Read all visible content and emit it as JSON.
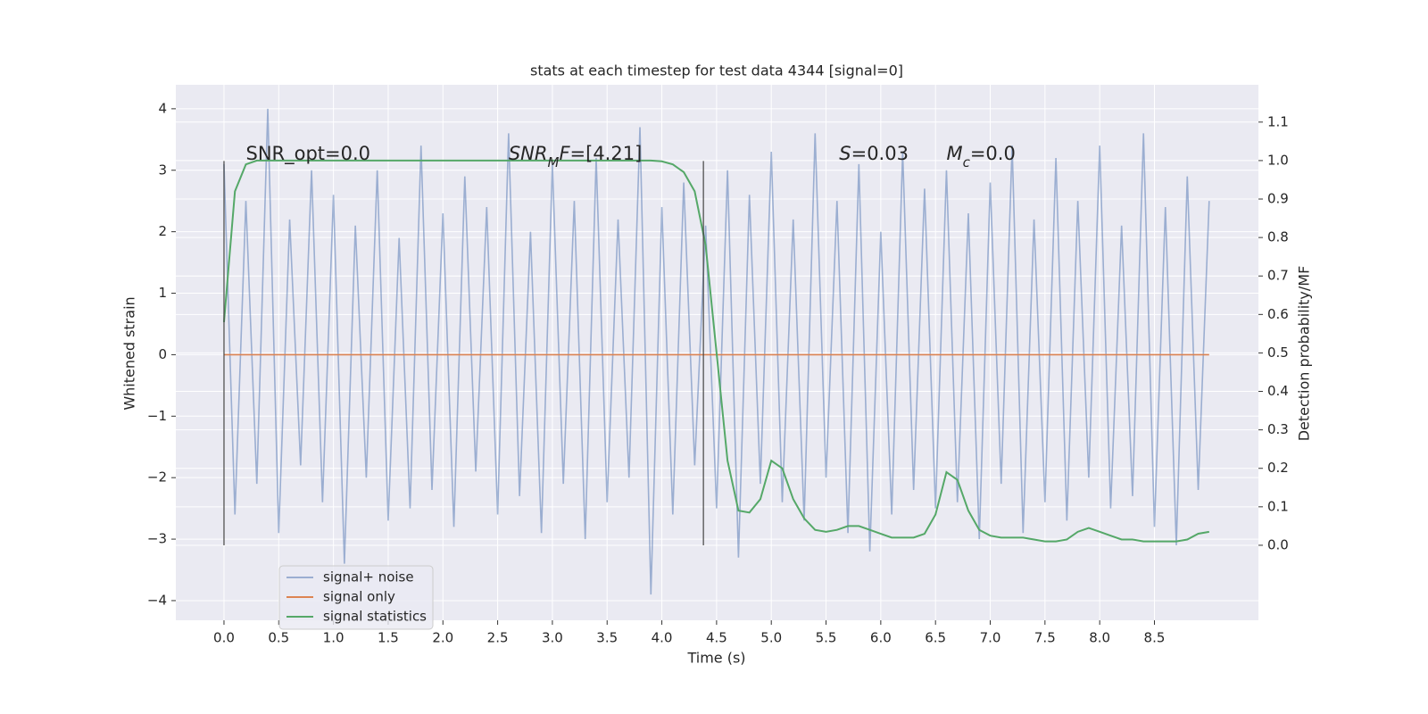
{
  "chart_data": {
    "type": "line",
    "title": "stats at each timestep for test data 4344 [signal=0]",
    "xlabel": "Time (s)",
    "ylabel": "Whitened strain",
    "y2label": "Detection probability/MF",
    "background": "#eaeaf2",
    "grid": true,
    "legend": "lower left",
    "xlim": [
      -0.44,
      9.45
    ],
    "ylim": [
      -4.32,
      4.39
    ],
    "y2lim": [
      -0.195,
      1.197
    ],
    "xticks": [
      {
        "value": 0,
        "label": "0.0"
      },
      {
        "value": 0.5,
        "label": "0.5"
      },
      {
        "value": 1,
        "label": "1.0"
      },
      {
        "value": 1.5,
        "label": "1.5"
      },
      {
        "value": 2,
        "label": "2.0"
      },
      {
        "value": 2.5,
        "label": "2.5"
      },
      {
        "value": 3,
        "label": "3.0"
      },
      {
        "value": 3.5,
        "label": "3.5"
      },
      {
        "value": 4,
        "label": "4.0"
      },
      {
        "value": 4.5,
        "label": "4.5"
      },
      {
        "value": 5,
        "label": "5.0"
      },
      {
        "value": 5.5,
        "label": "5.5"
      },
      {
        "value": 6,
        "label": "6.0"
      },
      {
        "value": 6.5,
        "label": "6.5"
      },
      {
        "value": 7,
        "label": "7.0"
      },
      {
        "value": 7.5,
        "label": "7.5"
      },
      {
        "value": 8,
        "label": "8.0"
      },
      {
        "value": 8.5,
        "label": "8.5"
      }
    ],
    "yticks": [
      {
        "value": -4,
        "label": "−4"
      },
      {
        "value": -3,
        "label": "−3"
      },
      {
        "value": -2,
        "label": "−2"
      },
      {
        "value": -1,
        "label": "−1"
      },
      0,
      1,
      2,
      3,
      4
    ],
    "y2ticks": [
      {
        "value": 0,
        "label": "0.0"
      },
      {
        "value": 0.1,
        "label": "0.1"
      },
      {
        "value": 0.2,
        "label": "0.2"
      },
      {
        "value": 0.3,
        "label": "0.3"
      },
      {
        "value": 0.4,
        "label": "0.4"
      },
      {
        "value": 0.5,
        "label": "0.5"
      },
      {
        "value": 0.6,
        "label": "0.6"
      },
      {
        "value": 0.7,
        "label": "0.7"
      },
      {
        "value": 0.8,
        "label": "0.8"
      },
      {
        "value": 0.9,
        "label": "0.9"
      },
      {
        "value": 1,
        "label": "1.0"
      },
      {
        "value": 1.1,
        "label": "1.1"
      }
    ],
    "x": [
      0,
      0.1,
      0.2,
      0.3,
      0.4,
      0.5,
      0.6,
      0.7,
      0.8,
      0.9,
      1,
      1.1,
      1.2,
      1.3,
      1.4,
      1.5,
      1.6,
      1.7,
      1.8,
      1.9,
      2,
      2.1,
      2.2,
      2.3,
      2.4,
      2.5,
      2.6,
      2.7,
      2.8,
      2.9,
      3,
      3.1,
      3.2,
      3.3,
      3.4,
      3.5,
      3.6,
      3.7,
      3.8,
      3.9,
      4,
      4.1,
      4.2,
      4.3,
      4.4,
      4.5,
      4.6,
      4.7,
      4.8,
      4.9,
      5,
      5.1,
      5.2,
      5.3,
      5.4,
      5.5,
      5.6,
      5.7,
      5.8,
      5.9,
      6,
      6.1,
      6.2,
      6.3,
      6.4,
      6.5,
      6.6,
      6.7,
      6.8,
      6.9,
      7,
      7.1,
      7.2,
      7.3,
      7.4,
      7.5,
      7.6,
      7.7,
      7.8,
      7.9,
      8,
      8.1,
      8.2,
      8.3,
      8.4,
      8.5,
      8.6,
      8.7,
      8.8,
      8.9,
      9
    ],
    "series": [
      {
        "name": "signal+ noise",
        "color": "#4c72b0",
        "alpha": 0.5,
        "values": [
          3.1,
          -2.6,
          2.5,
          -2.1,
          4.0,
          -2.9,
          2.2,
          -1.8,
          3.0,
          -2.4,
          2.6,
          -3.4,
          2.1,
          -2.0,
          3.0,
          -2.7,
          1.9,
          -2.5,
          3.4,
          -2.2,
          2.3,
          -2.8,
          2.9,
          -1.9,
          2.4,
          -2.6,
          3.6,
          -2.3,
          2.0,
          -2.9,
          3.1,
          -2.1,
          2.5,
          -3.0,
          3.2,
          -2.4,
          2.2,
          -2.0,
          3.7,
          -3.9,
          2.4,
          -2.6,
          2.8,
          -1.8,
          2.1,
          -2.5,
          3.0,
          -3.3,
          2.6,
          -2.1,
          3.3,
          -2.4,
          2.2,
          -2.7,
          3.6,
          -2.0,
          2.5,
          -2.9,
          3.1,
          -3.2,
          2.0,
          -2.6,
          3.3,
          -2.2,
          2.7,
          -2.5,
          3.0,
          -2.4,
          2.3,
          -3.0,
          2.8,
          -2.1,
          3.4,
          -2.9,
          2.2,
          -2.4,
          3.2,
          -2.7,
          2.5,
          -2.0,
          3.4,
          -2.5,
          2.1,
          -2.3,
          3.6,
          -2.8,
          2.4,
          -3.1,
          2.9,
          -2.2,
          2.5
        ]
      },
      {
        "name": "signal only",
        "color": "#dd8452",
        "values": [
          0,
          0,
          0,
          0,
          0,
          0,
          0,
          0,
          0,
          0,
          0,
          0,
          0,
          0,
          0,
          0,
          0,
          0,
          0,
          0,
          0,
          0,
          0,
          0,
          0,
          0,
          0,
          0,
          0,
          0,
          0,
          0,
          0,
          0,
          0,
          0,
          0,
          0,
          0,
          0,
          0,
          0,
          0,
          0,
          0,
          0,
          0,
          0,
          0,
          0,
          0,
          0,
          0,
          0,
          0,
          0,
          0,
          0,
          0,
          0,
          0,
          0,
          0,
          0,
          0,
          0,
          0,
          0,
          0,
          0,
          0,
          0,
          0,
          0,
          0,
          0,
          0,
          0,
          0,
          0,
          0,
          0,
          0,
          0,
          0,
          0,
          0,
          0,
          0,
          0,
          0
        ]
      },
      {
        "name": "signal statistics",
        "color": "#55a868",
        "axis": "y2",
        "values": [
          0.58,
          0.92,
          0.99,
          1,
          1,
          1,
          1,
          1,
          1,
          1,
          1,
          1,
          1,
          1,
          1,
          1,
          1,
          1,
          1,
          1,
          1,
          1,
          1,
          1,
          1,
          1,
          1,
          1,
          1,
          1,
          1,
          1,
          1,
          1,
          1,
          1,
          1,
          1,
          1,
          1,
          0.998,
          0.99,
          0.97,
          0.92,
          0.78,
          0.5,
          0.22,
          0.09,
          0.085,
          0.12,
          0.22,
          0.2,
          0.12,
          0.07,
          0.04,
          0.035,
          0.04,
          0.05,
          0.05,
          0.04,
          0.03,
          0.02,
          0.02,
          0.02,
          0.03,
          0.08,
          0.19,
          0.17,
          0.09,
          0.04,
          0.025,
          0.02,
          0.02,
          0.02,
          0.015,
          0.01,
          0.01,
          0.015,
          0.035,
          0.045,
          0.035,
          0.025,
          0.015,
          0.015,
          0.01,
          0.01,
          0.01,
          0.01,
          0.015,
          0.03,
          0.035
        ]
      }
    ],
    "vlines": [
      {
        "x": 0,
        "ymin": -3.1,
        "ymax": 3.15,
        "color": "#444444"
      },
      {
        "x": 4.38,
        "ymin": -3.1,
        "ymax": 3.15,
        "color": "#444444"
      }
    ],
    "annotations": [
      {
        "x": 0.2,
        "y": 3.26,
        "parts": [
          {
            "text": "SNR_opt=0.0"
          }
        ]
      },
      {
        "x": 2.6,
        "y": 3.26,
        "parts": [
          {
            "text": "SNR",
            "italic": true
          },
          {
            "text": "M",
            "italic": true,
            "sub": true
          },
          {
            "text": "F",
            "italic": true
          },
          {
            "text": "=[4.21]"
          }
        ]
      },
      {
        "x": 5.62,
        "y": 3.26,
        "parts": [
          {
            "text": "S",
            "italic": true
          },
          {
            "text": "=0.03"
          }
        ]
      },
      {
        "x": 6.6,
        "y": 3.26,
        "parts": [
          {
            "text": "M",
            "italic": true
          },
          {
            "text": "c",
            "italic": true,
            "sub": true
          },
          {
            "text": "=0.0"
          }
        ]
      }
    ]
  }
}
